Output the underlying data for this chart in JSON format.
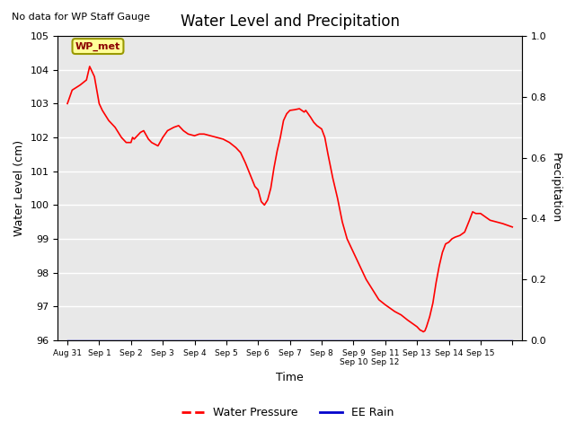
{
  "title": "Water Level and Precipitation",
  "subtitle": "No data for WP Staff Gauge",
  "ylabel_left": "Water Level (cm)",
  "ylabel_right": "Precipitation",
  "xlabel": "Time",
  "ylim_left": [
    96.0,
    105.0
  ],
  "ylim_right": [
    0.0,
    1.0
  ],
  "yticks_left": [
    96.0,
    97.0,
    98.0,
    99.0,
    100.0,
    101.0,
    102.0,
    103.0,
    104.0,
    105.0
  ],
  "yticks_right": [
    0.0,
    0.2,
    0.4,
    0.6,
    0.8,
    1.0
  ],
  "line_color_water": "#FF0000",
  "line_color_rain": "#0000CC",
  "bg_color": "#E8E8E8",
  "grid_color": "#FFFFFF",
  "legend_label_water": "Water Pressure",
  "legend_label_rain": "EE Rain",
  "legend_box_label": "WP_met",
  "legend_box_color": "#FFFF99",
  "legend_box_border": "#999900",
  "xtick_positions": [
    0,
    1,
    2,
    3,
    4,
    5,
    6,
    7,
    8,
    9,
    10,
    11,
    12,
    13,
    14
  ],
  "xtick_labels": [
    "Aug 31",
    "Sep 1",
    "Sep 2",
    "Sep 3",
    "Sep 4",
    "Sep 5",
    "Sep 6",
    "Sep 7",
    "Sep 8",
    "Sep 9\nSep 10",
    "Sep 11\nSep 12",
    "Sep 13",
    "Sep 14",
    "Sep 15",
    ""
  ],
  "water_data": [
    [
      0.0,
      103.0
    ],
    [
      0.15,
      103.4
    ],
    [
      0.4,
      103.55
    ],
    [
      0.6,
      103.7
    ],
    [
      0.7,
      104.1
    ],
    [
      0.85,
      103.8
    ],
    [
      1.0,
      103.0
    ],
    [
      1.1,
      102.8
    ],
    [
      1.3,
      102.5
    ],
    [
      1.5,
      102.3
    ],
    [
      1.7,
      102.0
    ],
    [
      1.85,
      101.85
    ],
    [
      2.0,
      101.85
    ],
    [
      2.05,
      102.0
    ],
    [
      2.1,
      101.95
    ],
    [
      2.2,
      102.05
    ],
    [
      2.3,
      102.15
    ],
    [
      2.4,
      102.2
    ],
    [
      2.55,
      101.95
    ],
    [
      2.65,
      101.85
    ],
    [
      2.75,
      101.8
    ],
    [
      2.85,
      101.75
    ],
    [
      3.0,
      102.0
    ],
    [
      3.15,
      102.2
    ],
    [
      3.35,
      102.3
    ],
    [
      3.5,
      102.35
    ],
    [
      3.65,
      102.2
    ],
    [
      3.8,
      102.1
    ],
    [
      4.0,
      102.05
    ],
    [
      4.15,
      102.1
    ],
    [
      4.3,
      102.1
    ],
    [
      4.5,
      102.05
    ],
    [
      4.7,
      102.0
    ],
    [
      4.9,
      101.95
    ],
    [
      5.1,
      101.85
    ],
    [
      5.3,
      101.7
    ],
    [
      5.45,
      101.55
    ],
    [
      5.6,
      101.25
    ],
    [
      5.75,
      100.9
    ],
    [
      5.9,
      100.55
    ],
    [
      6.0,
      100.45
    ],
    [
      6.1,
      100.1
    ],
    [
      6.15,
      100.05
    ],
    [
      6.2,
      100.0
    ],
    [
      6.3,
      100.15
    ],
    [
      6.4,
      100.5
    ],
    [
      6.5,
      101.1
    ],
    [
      6.6,
      101.6
    ],
    [
      6.7,
      102.0
    ],
    [
      6.8,
      102.5
    ],
    [
      6.9,
      102.7
    ],
    [
      7.0,
      102.8
    ],
    [
      7.15,
      102.82
    ],
    [
      7.3,
      102.85
    ],
    [
      7.45,
      102.75
    ],
    [
      7.5,
      102.8
    ],
    [
      7.65,
      102.6
    ],
    [
      7.75,
      102.45
    ],
    [
      7.85,
      102.35
    ],
    [
      8.0,
      102.25
    ],
    [
      8.1,
      102.0
    ],
    [
      8.2,
      101.5
    ],
    [
      8.35,
      100.8
    ],
    [
      8.5,
      100.2
    ],
    [
      8.65,
      99.5
    ],
    [
      8.8,
      99.0
    ],
    [
      9.0,
      98.6
    ],
    [
      9.2,
      98.2
    ],
    [
      9.4,
      97.8
    ],
    [
      9.6,
      97.5
    ],
    [
      9.8,
      97.2
    ],
    [
      10.0,
      97.05
    ],
    [
      10.15,
      96.95
    ],
    [
      10.3,
      96.85
    ],
    [
      10.5,
      96.75
    ],
    [
      10.7,
      96.6
    ],
    [
      10.85,
      96.5
    ],
    [
      11.0,
      96.4
    ],
    [
      11.1,
      96.3
    ],
    [
      11.15,
      96.28
    ],
    [
      11.2,
      96.25
    ],
    [
      11.25,
      96.28
    ],
    [
      11.3,
      96.4
    ],
    [
      11.4,
      96.7
    ],
    [
      11.5,
      97.1
    ],
    [
      11.6,
      97.7
    ],
    [
      11.7,
      98.2
    ],
    [
      11.8,
      98.6
    ],
    [
      11.9,
      98.85
    ],
    [
      12.0,
      98.9
    ],
    [
      12.1,
      99.0
    ],
    [
      12.2,
      99.05
    ],
    [
      12.35,
      99.1
    ],
    [
      12.5,
      99.2
    ],
    [
      12.65,
      99.55
    ],
    [
      12.75,
      99.8
    ],
    [
      12.85,
      99.75
    ],
    [
      13.0,
      99.75
    ],
    [
      13.15,
      99.65
    ],
    [
      13.3,
      99.55
    ],
    [
      13.5,
      99.5
    ],
    [
      13.7,
      99.45
    ],
    [
      13.85,
      99.4
    ],
    [
      14.0,
      99.35
    ]
  ],
  "background_color": "#FFFFFF"
}
